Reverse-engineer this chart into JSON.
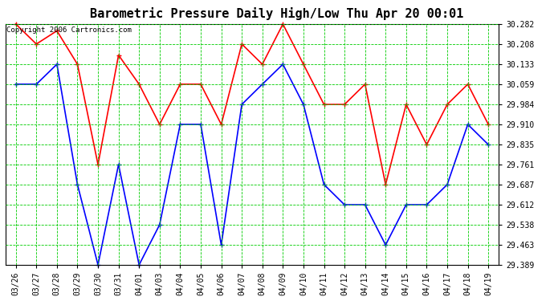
{
  "title": "Barometric Pressure Daily High/Low Thu Apr 20 00:01",
  "copyright": "Copyright 2006 Cartronics.com",
  "background_color": "#ffffff",
  "plot_bg_color": "#ffffff",
  "grid_color": "#00cc00",
  "labels": [
    "03/26",
    "03/27",
    "03/28",
    "03/29",
    "03/30",
    "03/31",
    "04/01",
    "04/03",
    "04/04",
    "04/05",
    "04/06",
    "04/07",
    "04/08",
    "04/09",
    "04/10",
    "04/11",
    "04/12",
    "04/13",
    "04/14",
    "04/15",
    "04/16",
    "04/17",
    "04/18",
    "04/19"
  ],
  "high_values": [
    30.282,
    30.208,
    30.257,
    30.133,
    29.761,
    30.167,
    30.059,
    29.91,
    30.059,
    30.059,
    29.91,
    30.208,
    30.133,
    30.282,
    30.133,
    29.984,
    29.984,
    30.059,
    29.687,
    29.984,
    29.835,
    29.984,
    30.059,
    29.91
  ],
  "low_values": [
    30.059,
    30.059,
    30.133,
    29.687,
    29.389,
    29.761,
    29.389,
    29.538,
    29.91,
    29.91,
    29.463,
    29.984,
    30.059,
    30.133,
    29.984,
    29.687,
    29.612,
    29.612,
    29.463,
    29.612,
    29.612,
    29.687,
    29.91,
    29.835
  ],
  "high_color": "#ff0000",
  "low_color": "#0000ff",
  "marker": "+",
  "marker_size": 5,
  "line_width": 1.2,
  "ylim_min": 29.389,
  "ylim_max": 30.282,
  "yticks": [
    29.389,
    29.463,
    29.538,
    29.612,
    29.687,
    29.761,
    29.835,
    29.91,
    29.984,
    30.059,
    30.133,
    30.208,
    30.282
  ],
  "title_fontsize": 11,
  "tick_fontsize": 7,
  "copyright_fontsize": 6.5
}
